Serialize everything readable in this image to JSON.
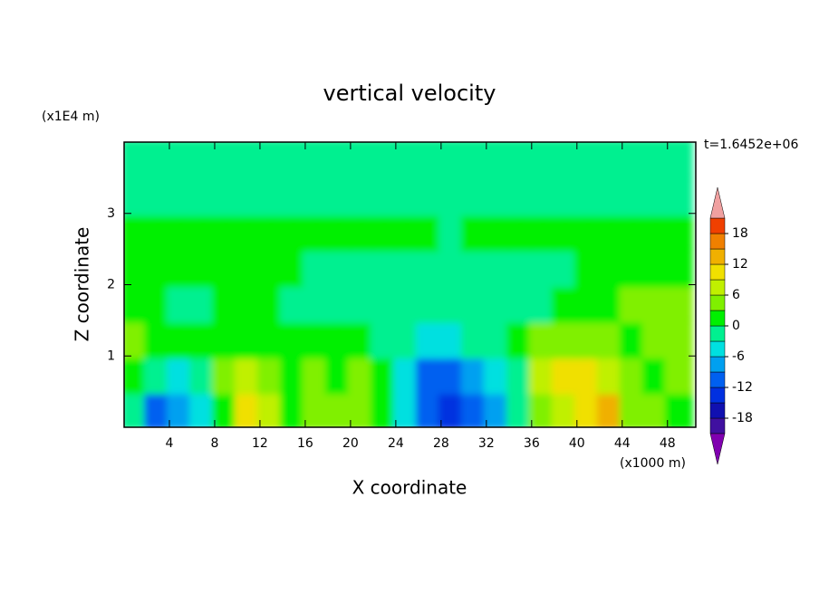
{
  "chart_data": {
    "type": "contour",
    "title": "vertical velocity",
    "x_label": "X coordinate",
    "y_label": "Z coordinate",
    "x_unit": "(x1000 m)",
    "y_unit": "(x1E4 m)",
    "annotation": "t=1.6452e+06",
    "xlim": [
      0,
      50.5
    ],
    "ylim": [
      0,
      4
    ],
    "xticks": [
      4,
      8,
      12,
      16,
      20,
      24,
      28,
      32,
      36,
      40,
      44,
      48
    ],
    "yticks": [
      1,
      2,
      3
    ],
    "levels": [
      -21,
      -18,
      -15,
      -12,
      -9,
      -6,
      -3,
      0,
      3,
      6,
      9,
      12,
      15,
      18,
      21
    ],
    "colors": [
      "#8000b0",
      "#4010a0",
      "#1010b0",
      "#0030e0",
      "#0060f0",
      "#00a0f0",
      "#00e0e0",
      "#00f090",
      "#00f000",
      "#80f000",
      "#c0f000",
      "#f0e000",
      "#f0b000",
      "#f08000",
      "#f04000",
      "#f0a0a0"
    ],
    "colorbar_ticks": [
      -18,
      -12,
      -6,
      0,
      6,
      12,
      18
    ],
    "field": {
      "x": [
        1,
        3,
        5,
        7,
        9,
        11,
        13,
        15,
        17,
        19,
        21,
        23,
        25,
        27,
        29,
        31,
        33,
        35,
        37,
        39,
        41,
        43,
        45,
        47,
        49
      ],
      "z": [
        0.25,
        0.75,
        1.25,
        1.75,
        2.25,
        2.75,
        3.25,
        3.75
      ],
      "values": [
        [
          -3,
          -10,
          -8,
          -4,
          1,
          10,
          6,
          2,
          4,
          3,
          5,
          1,
          -4,
          -10,
          -14,
          -12,
          -7,
          -2,
          3,
          6,
          11,
          12,
          5,
          3,
          2
        ],
        [
          2,
          -3,
          -5,
          -1,
          3,
          7,
          4,
          1,
          5,
          2,
          3,
          1,
          -5,
          -12,
          -11,
          -8,
          -6,
          -2,
          8,
          10,
          9,
          7,
          5,
          2,
          3
        ],
        [
          3,
          1,
          1,
          1,
          1,
          2,
          1,
          1,
          1,
          1,
          1,
          -1,
          -3,
          -6,
          -5,
          -3,
          -2,
          1,
          5,
          4,
          3,
          4,
          2,
          3,
          3
        ],
        [
          2,
          1,
          -1,
          -1,
          1,
          1,
          1,
          -1,
          -1,
          -1,
          -1,
          -1,
          -2,
          -3,
          -2,
          -1,
          -1,
          -1,
          -1,
          1,
          1,
          2,
          3,
          4,
          3
        ],
        [
          1,
          1,
          1,
          1,
          1,
          1,
          1,
          1,
          -1,
          -1,
          -1,
          -1,
          -1,
          -1,
          -1,
          -1,
          -1,
          -1,
          -1,
          -1,
          1,
          1,
          1,
          1,
          1
        ],
        [
          1,
          1,
          1,
          1,
          1,
          1,
          1,
          1,
          1,
          1,
          1,
          1,
          1,
          1,
          -1,
          1,
          1,
          1,
          1,
          1,
          1,
          1,
          1,
          1,
          1
        ],
        [
          -1,
          -1,
          -1,
          -1,
          -1,
          -1,
          -1,
          -1,
          -1,
          -1,
          -1,
          -1,
          -1,
          -1,
          -1,
          -1,
          -1,
          -1,
          -1,
          -1,
          -1,
          -1,
          -1,
          -1,
          -1
        ],
        [
          -1,
          -1,
          -1,
          -1,
          -1,
          -1,
          -1,
          -1,
          -1,
          -1,
          -1,
          -1,
          -1,
          -1,
          -1,
          -1,
          -1,
          -1,
          -1,
          -1,
          -1,
          -1,
          -1,
          -1,
          -1
        ]
      ]
    }
  }
}
